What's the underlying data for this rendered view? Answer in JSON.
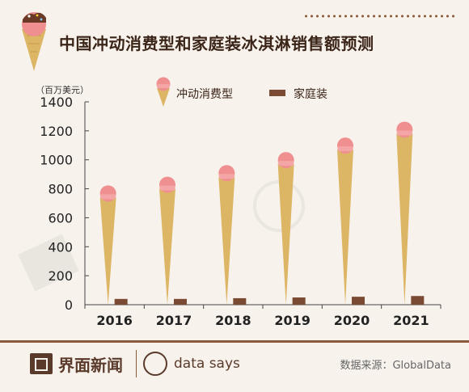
{
  "header": {
    "title": "中国冲动消费型和家庭装冰淇淋销售额预测",
    "unit_label": "（百万美元）"
  },
  "legend": {
    "impulse_label": "冲动消费型",
    "family_label": "家庭装"
  },
  "footer": {
    "brand": "界面新闻",
    "datasays": "data says",
    "source": "数据来源：GlobalData"
  },
  "colors": {
    "cone": "#dcb565",
    "scoop": "#ef8f8f",
    "family_bar": "#7a4a33",
    "title": "#3b2418"
  },
  "chart_data": {
    "type": "bar",
    "title": "中国冲动消费型和家庭装冰淇淋销售额预测",
    "ylabel": "（百万美元）",
    "xlabel": "",
    "categories": [
      "2016",
      "2017",
      "2018",
      "2019",
      "2020",
      "2021"
    ],
    "ylim": [
      0,
      1400
    ],
    "yticks": [
      0,
      200,
      400,
      600,
      800,
      1000,
      1200,
      1400
    ],
    "grid": false,
    "legend_position": "top",
    "series": [
      {
        "name": "冲动消费型",
        "values": [
          740,
          800,
          880,
          970,
          1070,
          1180
        ]
      },
      {
        "name": "家庭装",
        "values": [
          40,
          40,
          45,
          50,
          55,
          60
        ]
      }
    ]
  }
}
